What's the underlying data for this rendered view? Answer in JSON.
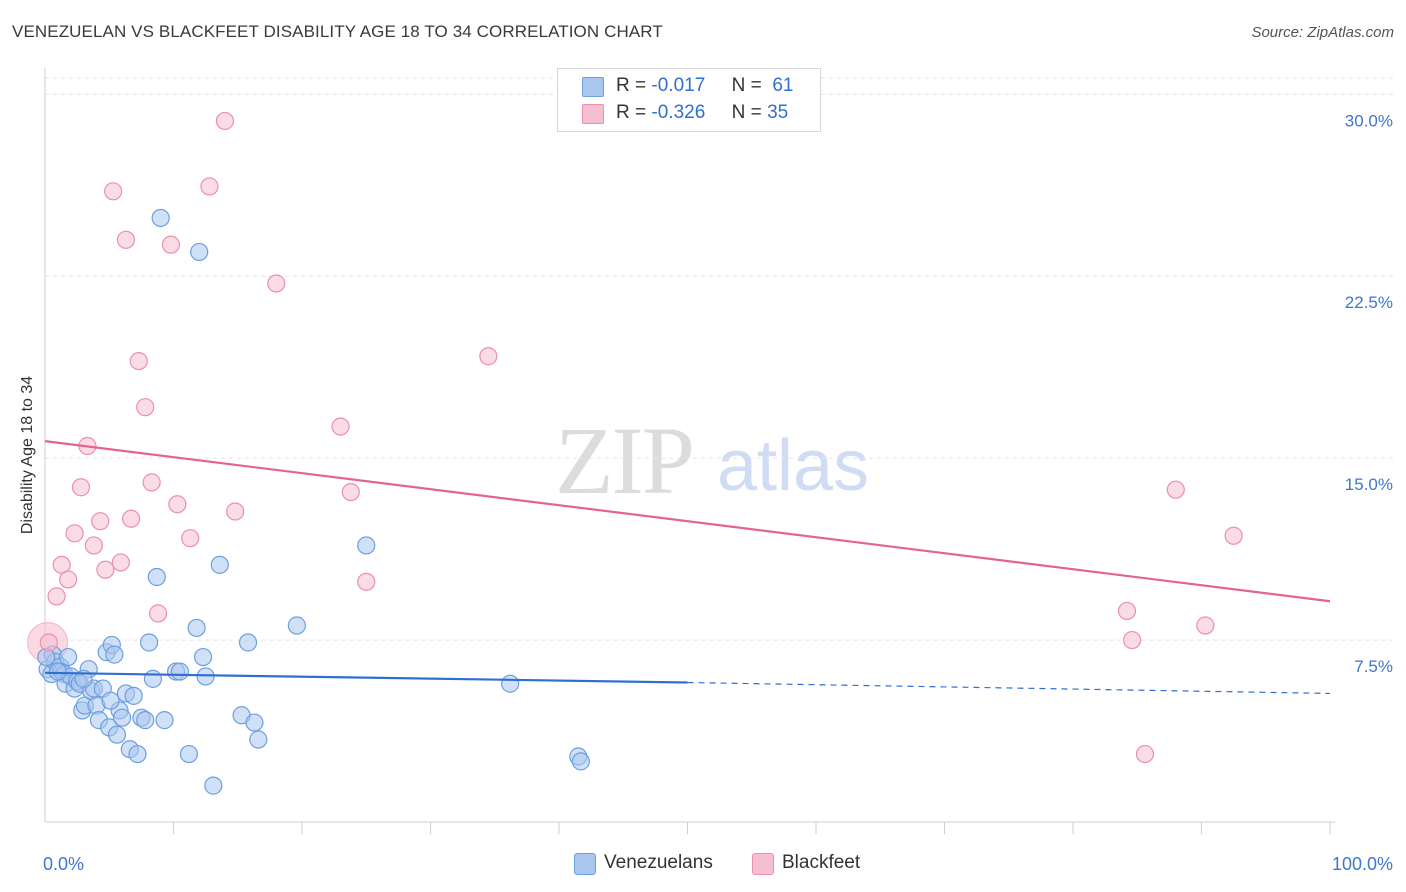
{
  "header": {
    "title": "VENEZUELAN VS BLACKFEET DISABILITY AGE 18 TO 34 CORRELATION CHART",
    "source": "Source: ZipAtlas.com"
  },
  "watermark": {
    "zip": "ZIP",
    "atlas": "atlas"
  },
  "legend": {
    "r_label": "R =",
    "n_label": "N =",
    "series": [
      {
        "r": "-0.017",
        "n": "61"
      },
      {
        "r": "-0.326",
        "n": "35"
      }
    ]
  },
  "bottom_legend": [
    "Venezuelans",
    "Blackfeet"
  ],
  "colors": {
    "blue_fill": "#a9c7ef",
    "blue_stroke": "#6d9fe0",
    "blue_line": "#2f6fd1",
    "pink_fill": "#f6bfd0",
    "pink_stroke": "#ec8fae",
    "pink_line": "#e3648f",
    "tick_label": "#3f76d0",
    "grid": "#e3e3e3"
  },
  "chart_data": {
    "type": "scatter",
    "title": "VENEZUELAN VS BLACKFEET DISABILITY AGE 18 TO 34 CORRELATION CHART",
    "xlabel": "",
    "ylabel": "Disability Age 18 to 34",
    "xlim": [
      0,
      100
    ],
    "ylim": [
      0,
      31
    ],
    "x_tick_labels": [
      "0.0%",
      "100.0%"
    ],
    "y_ticks": [
      7.5,
      15.0,
      22.5,
      30.0
    ],
    "y_tick_labels": [
      "7.5%",
      "15.0%",
      "22.5%",
      "30.0%"
    ],
    "grid": true,
    "legend_position": "top-center",
    "series": [
      {
        "name": "Venezuelans",
        "trend": {
          "x": [
            0,
            50
          ],
          "y": [
            6.15,
            5.75
          ],
          "dashed_to": [
            100,
            5.3
          ]
        },
        "points": [
          [
            0.2,
            6.3
          ],
          [
            0.5,
            6.1
          ],
          [
            0.6,
            6.9
          ],
          [
            0.8,
            6.6
          ],
          [
            1.2,
            6.4
          ],
          [
            1.3,
            6.2
          ],
          [
            1.5,
            6.1
          ],
          [
            1.6,
            5.7
          ],
          [
            1.8,
            6.8
          ],
          [
            2.0,
            6.0
          ],
          [
            2.3,
            5.5
          ],
          [
            2.5,
            5.8
          ],
          [
            2.7,
            5.7
          ],
          [
            2.9,
            4.6
          ],
          [
            3.1,
            4.8
          ],
          [
            3.4,
            6.3
          ],
          [
            3.6,
            5.4
          ],
          [
            3.8,
            5.5
          ],
          [
            4.0,
            4.8
          ],
          [
            4.2,
            4.2
          ],
          [
            4.5,
            5.5
          ],
          [
            4.8,
            7.0
          ],
          [
            5.0,
            3.9
          ],
          [
            5.2,
            7.3
          ],
          [
            5.4,
            6.9
          ],
          [
            5.6,
            3.6
          ],
          [
            5.8,
            4.6
          ],
          [
            6.0,
            4.3
          ],
          [
            6.3,
            5.3
          ],
          [
            6.6,
            3.0
          ],
          [
            6.9,
            5.2
          ],
          [
            7.2,
            2.8
          ],
          [
            7.5,
            4.3
          ],
          [
            7.8,
            4.2
          ],
          [
            8.1,
            7.4
          ],
          [
            8.4,
            5.9
          ],
          [
            8.7,
            10.1
          ],
          [
            9.0,
            24.9
          ],
          [
            9.3,
            4.2
          ],
          [
            10.2,
            6.2
          ],
          [
            10.5,
            6.2
          ],
          [
            11.2,
            2.8
          ],
          [
            11.8,
            8.0
          ],
          [
            12.0,
            23.5
          ],
          [
            12.3,
            6.8
          ],
          [
            12.5,
            6.0
          ],
          [
            13.1,
            1.5
          ],
          [
            13.6,
            10.6
          ],
          [
            15.3,
            4.4
          ],
          [
            15.8,
            7.4
          ],
          [
            16.3,
            4.1
          ],
          [
            16.6,
            3.4
          ],
          [
            19.6,
            8.1
          ],
          [
            25.0,
            11.4
          ],
          [
            36.2,
            5.7
          ],
          [
            41.5,
            2.7
          ],
          [
            41.7,
            2.5
          ],
          [
            0.1,
            6.8
          ],
          [
            1.0,
            6.2
          ],
          [
            3.0,
            5.9
          ],
          [
            5.1,
            5.0
          ]
        ]
      },
      {
        "name": "Blackfeet",
        "trend": {
          "x": [
            0,
            100
          ],
          "y": [
            15.7,
            9.1
          ]
        },
        "points": [
          [
            0.3,
            7.4
          ],
          [
            0.9,
            9.3
          ],
          [
            1.3,
            10.6
          ],
          [
            1.8,
            10.0
          ],
          [
            2.3,
            11.9
          ],
          [
            2.8,
            13.8
          ],
          [
            3.3,
            15.5
          ],
          [
            3.8,
            11.4
          ],
          [
            4.3,
            12.4
          ],
          [
            4.7,
            10.4
          ],
          [
            5.3,
            26.0
          ],
          [
            5.9,
            10.7
          ],
          [
            6.3,
            24.0
          ],
          [
            6.7,
            12.5
          ],
          [
            7.3,
            19.0
          ],
          [
            7.8,
            17.1
          ],
          [
            8.3,
            14.0
          ],
          [
            8.8,
            8.6
          ],
          [
            9.8,
            23.8
          ],
          [
            10.3,
            13.1
          ],
          [
            11.3,
            11.7
          ],
          [
            12.8,
            26.2
          ],
          [
            14.0,
            28.9
          ],
          [
            14.8,
            12.8
          ],
          [
            18.0,
            22.2
          ],
          [
            23.0,
            16.3
          ],
          [
            23.8,
            13.6
          ],
          [
            25.0,
            9.9
          ],
          [
            34.5,
            19.2
          ],
          [
            84.2,
            8.7
          ],
          [
            84.6,
            7.5
          ],
          [
            85.6,
            2.8
          ],
          [
            88.0,
            13.7
          ],
          [
            90.3,
            8.1
          ],
          [
            92.5,
            11.8
          ]
        ]
      }
    ]
  }
}
